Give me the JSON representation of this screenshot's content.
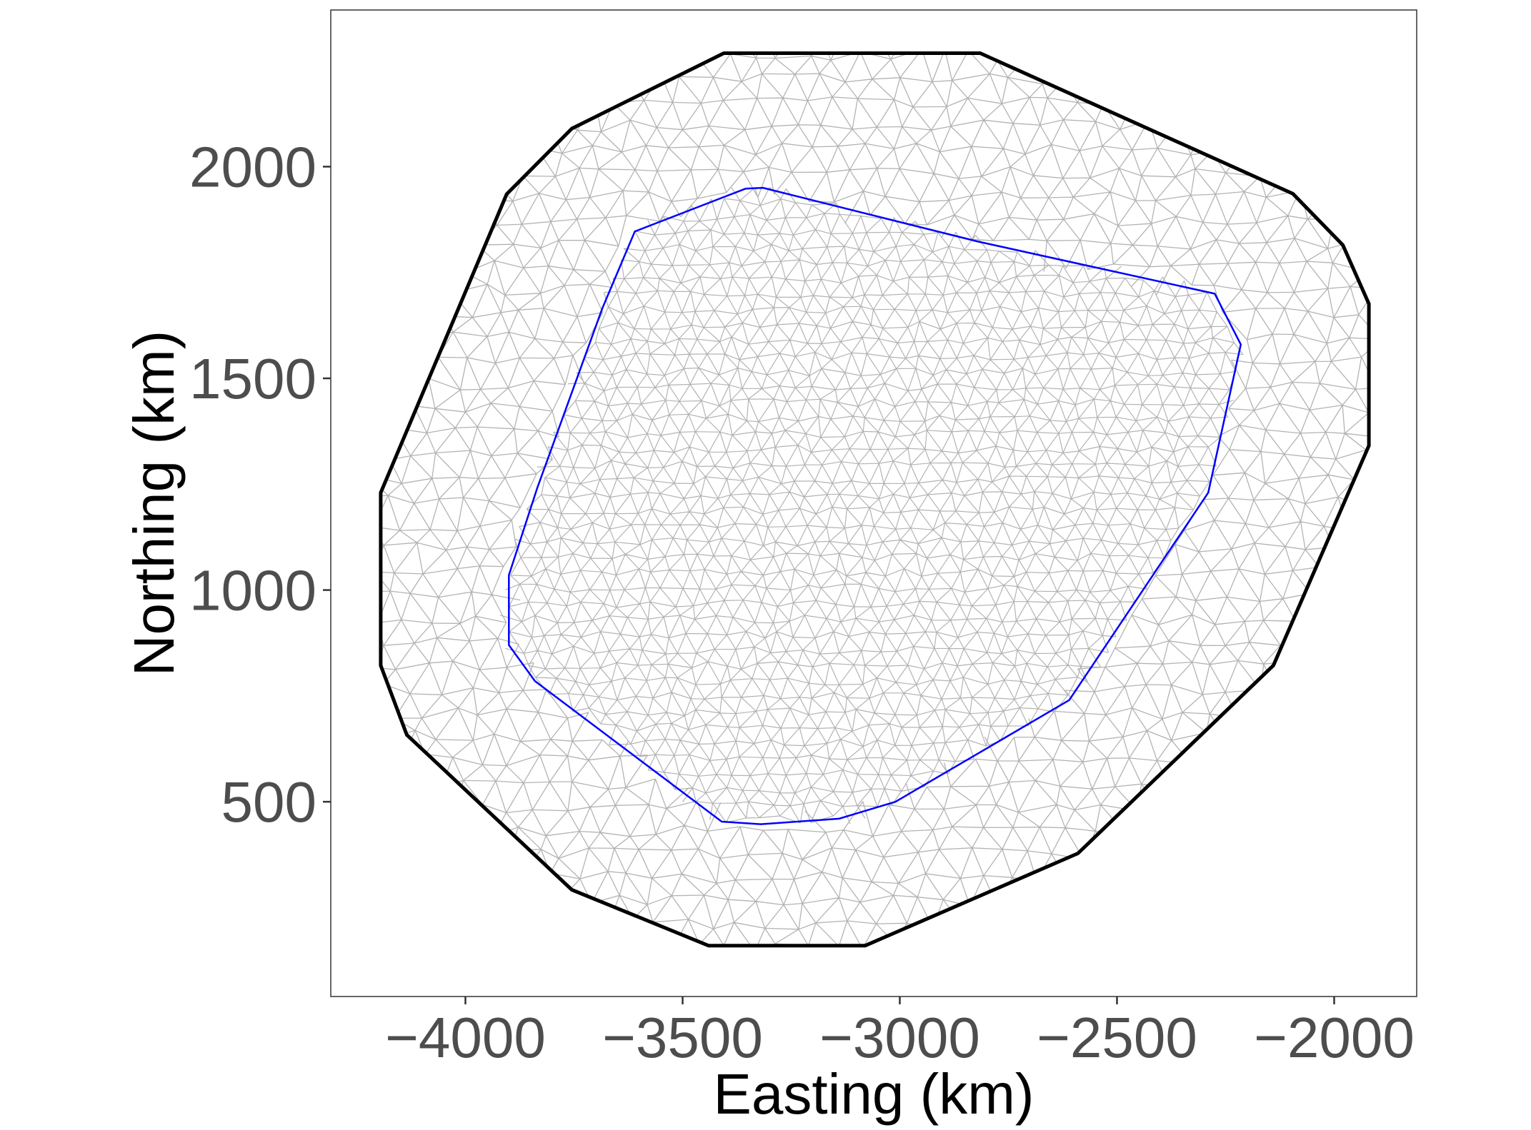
{
  "chart_data": {
    "type": "mesh",
    "title": "",
    "xlabel": "Easting (km)",
    "ylabel": "Northing (km)",
    "xlim": [
      -4310,
      -1810
    ],
    "ylim": [
      40,
      2370
    ],
    "x_ticks": [
      -4000,
      -3500,
      -3000,
      -2500,
      -2000
    ],
    "x_tick_labels": [
      "−4000",
      "−3500",
      "−3000",
      "−2500",
      "−2000"
    ],
    "y_ticks": [
      500,
      1000,
      1500,
      2000
    ],
    "y_tick_labels": [
      "500",
      "1000",
      "1500",
      "2000"
    ],
    "grid": false,
    "series": [
      {
        "role": "outer-boundary",
        "color": "#000000",
        "points": [
          [
            -3405,
            2268
          ],
          [
            -2815,
            2268
          ],
          [
            -2095,
            1936
          ],
          [
            -1980,
            1815
          ],
          [
            -1920,
            1676
          ],
          [
            -1920,
            1341
          ],
          [
            -2140,
            822
          ],
          [
            -2590,
            378
          ],
          [
            -3080,
            160
          ],
          [
            -3440,
            160
          ],
          [
            -3755,
            292
          ],
          [
            -4135,
            658
          ],
          [
            -4195,
            822
          ],
          [
            -4195,
            1230
          ],
          [
            -3905,
            1935
          ],
          [
            -3755,
            2090
          ]
        ]
      },
      {
        "role": "inner-boundary",
        "color": "#0000ff",
        "points": [
          [
            -3315,
            1950
          ],
          [
            -3355,
            1948
          ],
          [
            -3610,
            1847
          ],
          [
            -3685,
            1665
          ],
          [
            -3835,
            1240
          ],
          [
            -3900,
            1035
          ],
          [
            -3900,
            870
          ],
          [
            -3840,
            785
          ],
          [
            -3410,
            453
          ],
          [
            -3320,
            447
          ],
          [
            -3140,
            460
          ],
          [
            -3010,
            500
          ],
          [
            -2610,
            740
          ],
          [
            -2290,
            1230
          ],
          [
            -2215,
            1580
          ],
          [
            -2275,
            1700
          ],
          [
            -2820,
            1823
          ]
        ]
      }
    ],
    "mesh": {
      "color": "#b3b3b3",
      "description": "triangulated mesh filling the outer boundary, denser inside the inner boundary"
    }
  }
}
